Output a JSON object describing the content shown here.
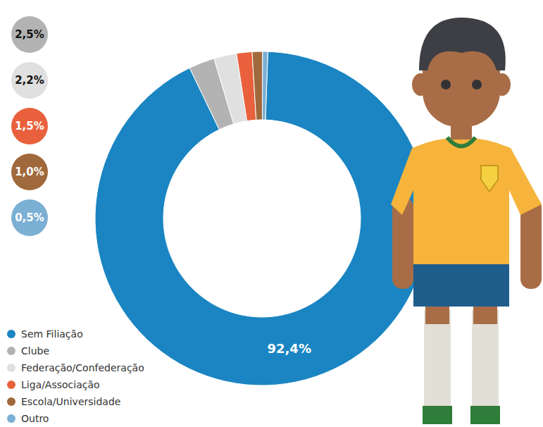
{
  "chart_data": {
    "type": "pie",
    "categories": [
      "Sem Filiação",
      "Clube",
      "Federação/Confederação",
      "Liga/Associação",
      "Escola/Universidade",
      "Outro"
    ],
    "values": [
      92.4,
      2.5,
      2.2,
      1.5,
      1.0,
      0.5
    ],
    "value_labels": [
      "92,4%",
      "2,5%",
      "2,2%",
      "1,5%",
      "1,0%",
      "0,5%"
    ],
    "colors": [
      "#1a85c2",
      "#b3b3b3",
      "#e0e0e0",
      "#e8613c",
      "#a0693c",
      "#7bafd4"
    ],
    "data_labels": true,
    "legend": "bottom-left"
  }
}
